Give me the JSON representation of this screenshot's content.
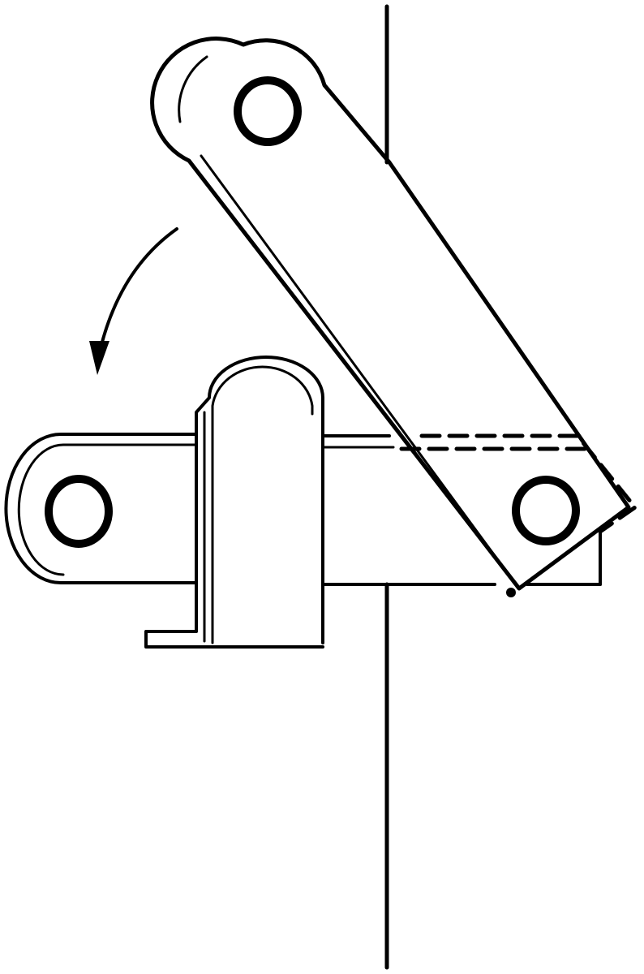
{
  "colors": {
    "ink": "#000000",
    "background": "#ffffff"
  },
  "parts": {
    "swing_arm": {
      "state": "rotated",
      "pivots": 2
    },
    "base_bar": {
      "pivots": 1
    },
    "hinge_pin": {},
    "dashed_outline": {
      "style": "dashed"
    },
    "rotation_arrow": {
      "direction": "counterclockwise"
    }
  }
}
